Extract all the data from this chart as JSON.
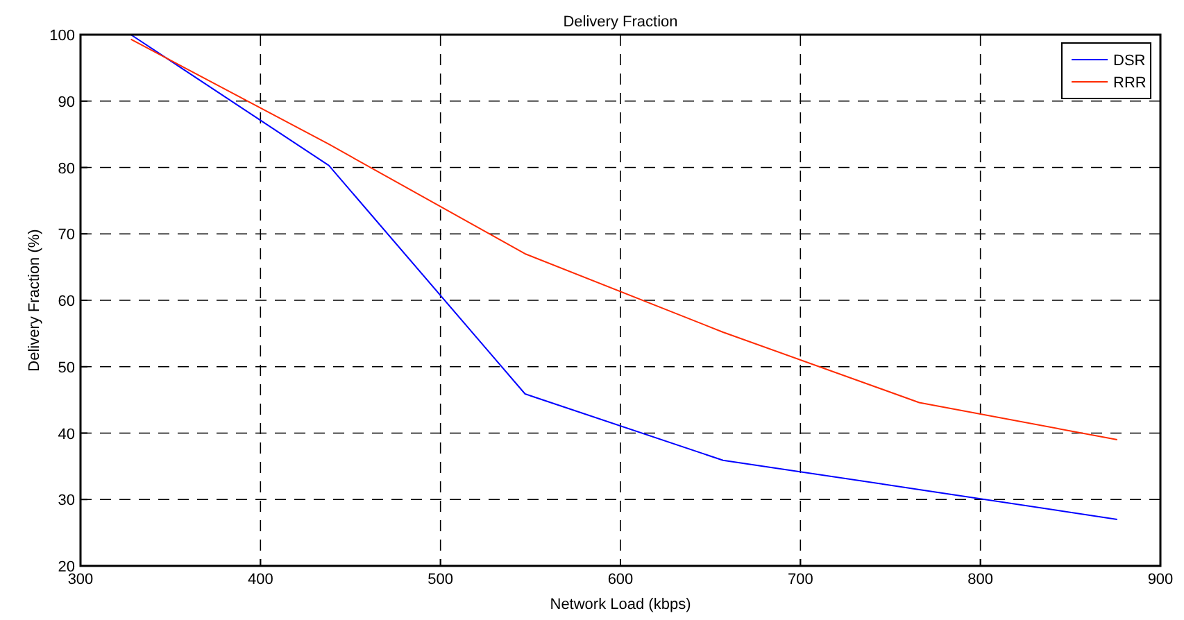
{
  "chart_data": {
    "type": "line",
    "title": "Delivery Fraction",
    "xlabel": "Network Load (kbps)",
    "ylabel": "Delivery Fraction (%)",
    "x": [
      328,
      438,
      547,
      657,
      766,
      876
    ],
    "series": [
      {
        "name": "DSR",
        "color": "#0000ff",
        "values": [
          100,
          80.3,
          45.9,
          35.9,
          31.5,
          27
        ]
      },
      {
        "name": "RRR",
        "color": "#ff2a00",
        "values": [
          99.3,
          83.5,
          67,
          55.2,
          44.6,
          39
        ]
      }
    ],
    "xlim": [
      300,
      900
    ],
    "xticks": [
      300,
      400,
      500,
      600,
      700,
      800,
      900
    ],
    "ylim": [
      20,
      100
    ],
    "yticks": [
      20,
      30,
      40,
      50,
      60,
      70,
      80,
      90,
      100
    ],
    "grid": true,
    "legend": "top right",
    "line_style": "solid",
    "marker": "none"
  }
}
